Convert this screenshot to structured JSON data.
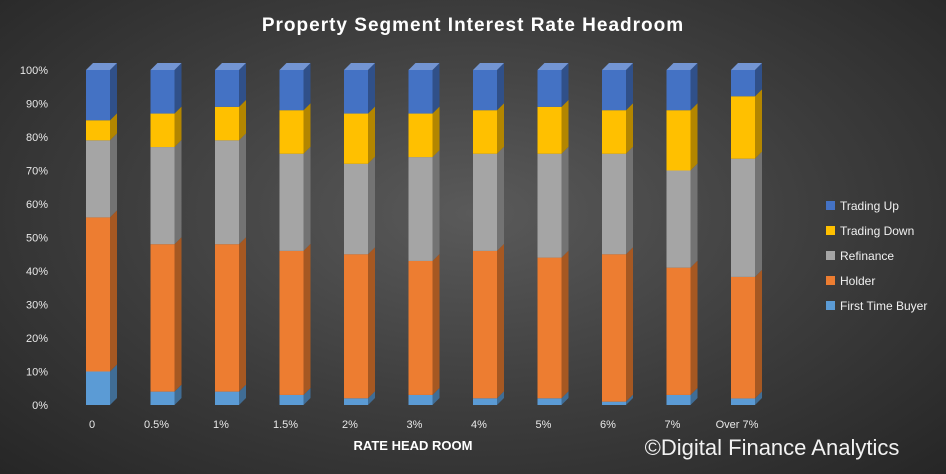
{
  "chart_data": {
    "type": "bar",
    "stacked": true,
    "normalized": true,
    "title": "Property Segment Interest Rate Headroom",
    "xlabel": "RATE HEAD ROOM",
    "ylabel": "",
    "ylim": [
      0,
      100
    ],
    "yticks": [
      "0%",
      "10%",
      "20%",
      "30%",
      "40%",
      "50%",
      "60%",
      "70%",
      "80%",
      "90%",
      "100%"
    ],
    "grid": false,
    "legend_position": "right",
    "categories": [
      "0",
      "0.5%",
      "1%",
      "1.5%",
      "2%",
      "3%",
      "4%",
      "5%",
      "6%",
      "7%",
      "Over 7%"
    ],
    "series": [
      {
        "name": "First Time Buyer",
        "color": "#5b9bd5",
        "values": [
          10,
          4,
          4,
          3,
          2,
          3,
          2,
          2,
          1,
          3,
          2
        ]
      },
      {
        "name": "Holder",
        "color": "#ed7d31",
        "values": [
          46,
          44,
          44,
          43,
          43,
          40,
          44,
          42,
          44,
          38,
          37
        ]
      },
      {
        "name": "Refinance",
        "color": "#a5a5a5",
        "values": [
          23,
          29,
          31,
          29,
          27,
          31,
          29,
          31,
          30,
          29,
          36
        ]
      },
      {
        "name": "Trading Down",
        "color": "#ffc000",
        "values": [
          6,
          10,
          10,
          13,
          15,
          13,
          13,
          14,
          13,
          18,
          19
        ]
      },
      {
        "name": "Trading Up",
        "color": "#4472c4",
        "values": [
          15,
          13,
          11,
          12,
          13,
          13,
          12,
          11,
          12,
          12,
          8
        ]
      }
    ]
  },
  "watermark": "©Digital Finance Analytics"
}
